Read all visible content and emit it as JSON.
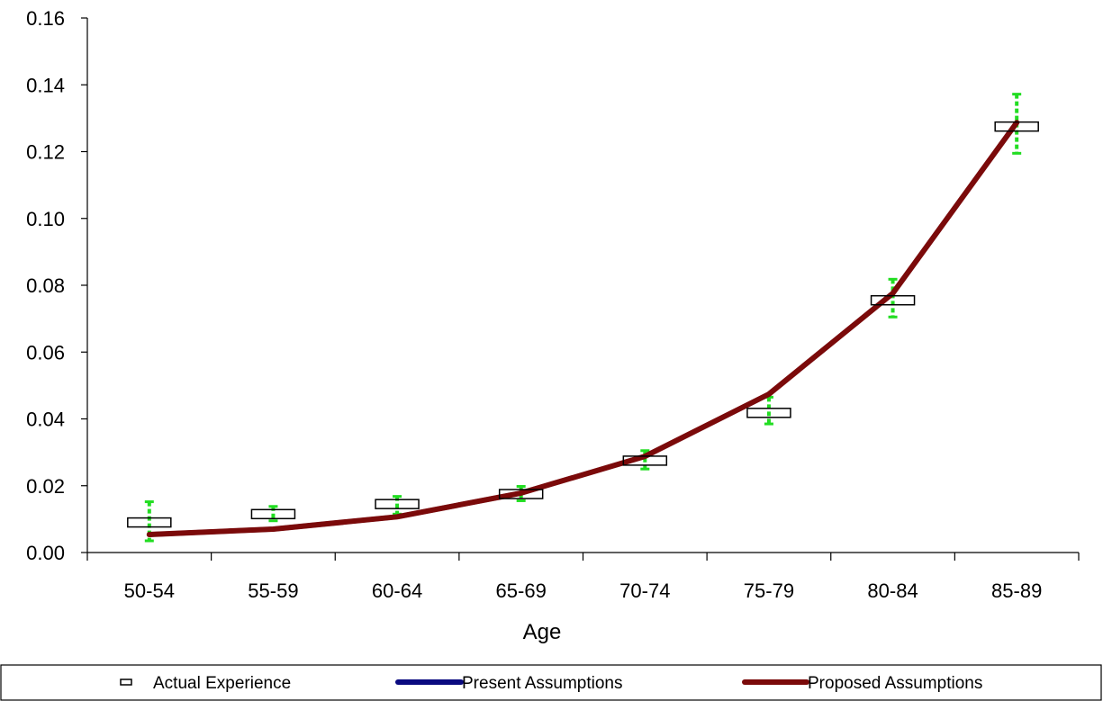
{
  "chart_data": {
    "type": "line",
    "title": "",
    "xlabel": "Age",
    "ylabel": "",
    "categories": [
      "50-54",
      "55-59",
      "60-64",
      "65-69",
      "70-74",
      "75-79",
      "80-84",
      "85-89"
    ],
    "ylim": [
      0,
      0.16
    ],
    "yticks": [
      "0.00",
      "0.02",
      "0.04",
      "0.06",
      "0.08",
      "0.10",
      "0.12",
      "0.14",
      "0.16"
    ],
    "grid": false,
    "legend_position": "bottom",
    "series": [
      {
        "name": "Actual Experience",
        "kind": "marker-with-error-bars",
        "values": [
          0.009,
          0.0115,
          0.0145,
          0.0175,
          0.0275,
          0.0418,
          0.0755,
          0.1275
        ],
        "error_low": [
          0.0035,
          0.0095,
          0.0115,
          0.0155,
          0.025,
          0.0385,
          0.0705,
          0.1195
        ],
        "error_high": [
          0.0152,
          0.0138,
          0.0168,
          0.0198,
          0.0305,
          0.0465,
          0.0818,
          0.1372
        ],
        "marker_color": "#000000",
        "error_color": "#22dd22"
      },
      {
        "name": "Present Assumptions",
        "kind": "line",
        "values": [
          0.0054,
          0.007,
          0.0107,
          0.0178,
          0.0288,
          0.0474,
          0.0776,
          0.1287
        ],
        "color": "#0a0a80"
      },
      {
        "name": "Proposed Assumptions",
        "kind": "line",
        "values": [
          0.0054,
          0.007,
          0.0107,
          0.0178,
          0.0288,
          0.0474,
          0.0776,
          0.1287
        ],
        "color": "#7b0a0a"
      }
    ]
  }
}
